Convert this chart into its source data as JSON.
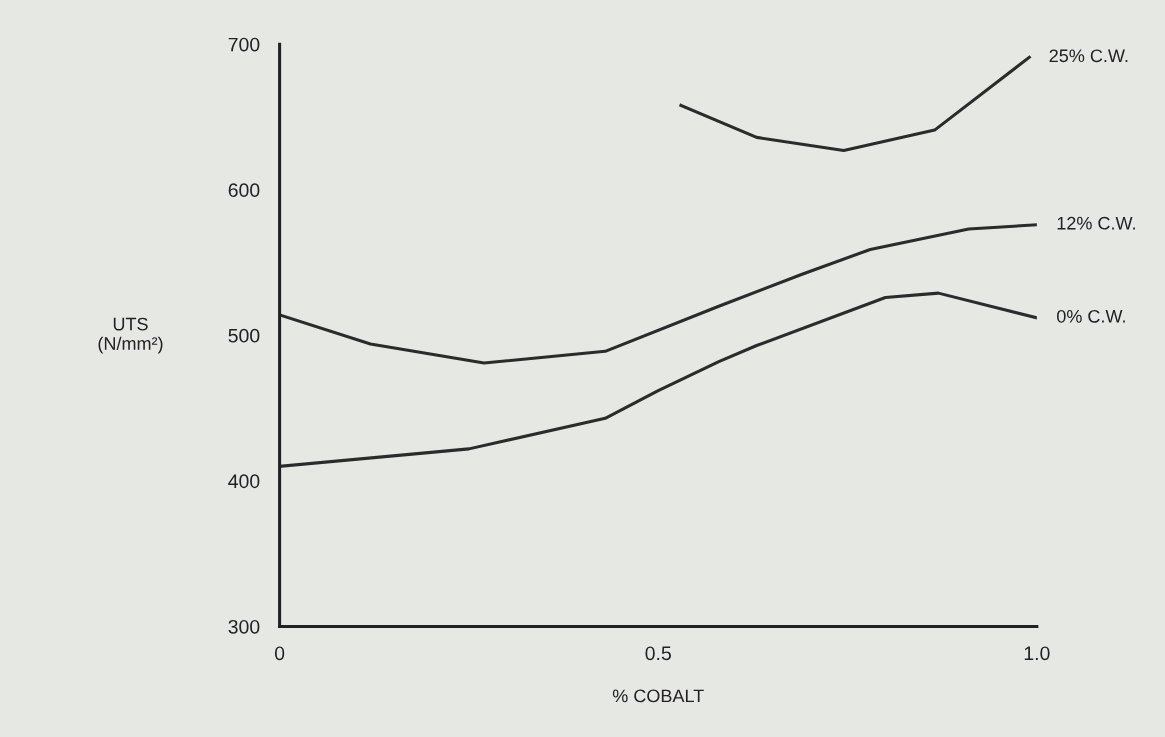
{
  "chart_data": {
    "type": "line",
    "xlabel": "% COBALT",
    "ylabel": "UTS\n(N/mm²)",
    "xlim": [
      0,
      1.0
    ],
    "ylim": [
      300,
      700
    ],
    "xticks": [
      0,
      0.5,
      {
        "value": 1.0,
        "label": "1.0"
      }
    ],
    "yticks": [
      300,
      400,
      500,
      600,
      700
    ],
    "grid": false,
    "legend": false,
    "marker": "none",
    "line_style": "solid",
    "series": [
      {
        "name": "25% C.W.",
        "color": "#2b2b2b",
        "x": [
          0.53,
          0.63,
          0.745,
          0.865,
          0.99
        ],
        "values": [
          658,
          636,
          627,
          641,
          691
        ]
      },
      {
        "name": "12% C.W.",
        "color": "#2b2b2b",
        "x": [
          0,
          0.12,
          0.27,
          0.43,
          0.58,
          0.69,
          0.78,
          0.91,
          1.0
        ],
        "values": [
          514,
          494,
          481,
          489,
          520,
          542,
          559,
          573,
          576
        ]
      },
      {
        "name": "0% C.W.",
        "color": "#2b2b2b",
        "x": [
          0,
          0.25,
          0.43,
          0.5,
          0.58,
          0.63,
          0.8,
          0.87,
          1.0
        ],
        "values": [
          410,
          422,
          443,
          462,
          482,
          493,
          526,
          529,
          512
        ]
      }
    ]
  }
}
